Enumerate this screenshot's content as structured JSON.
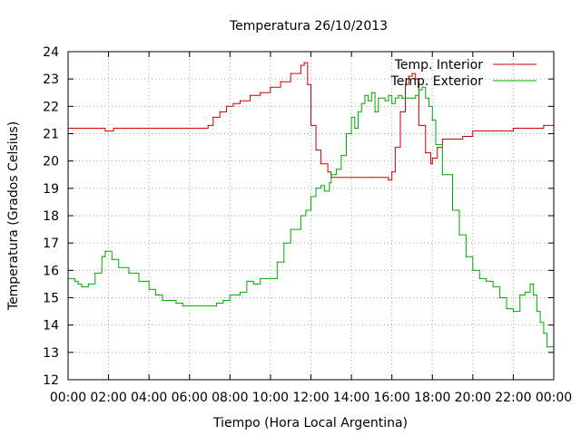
{
  "chart_data": {
    "type": "line",
    "title": "Temperatura 26/10/2013",
    "xlabel": "Tiempo (Hora Local Argentina)",
    "ylabel": "Temperatura (Grados Celsius)",
    "xlim": [
      "00:00",
      "24:00"
    ],
    "ylim": [
      12,
      24
    ],
    "x_ticks": [
      "00:00",
      "02:00",
      "04:00",
      "06:00",
      "08:00",
      "10:00",
      "12:00",
      "14:00",
      "16:00",
      "18:00",
      "20:00",
      "22:00",
      "00:00"
    ],
    "y_ticks": [
      "12",
      "13",
      "14",
      "15",
      "16",
      "17",
      "18",
      "19",
      "20",
      "21",
      "22",
      "23",
      "24"
    ],
    "grid": true,
    "legend_position": "top-right",
    "series": [
      {
        "name": "Temp. Interior",
        "color": "#cc0000",
        "x": [
          "00:00",
          "01:45",
          "01:50",
          "02:10",
          "02:15",
          "06:40",
          "06:55",
          "07:10",
          "07:30",
          "07:50",
          "08:10",
          "08:30",
          "09:00",
          "09:30",
          "10:00",
          "10:30",
          "11:00",
          "11:30",
          "11:40",
          "11:50",
          "12:00",
          "12:15",
          "12:30",
          "12:50",
          "13:00",
          "14:00",
          "15:00",
          "15:40",
          "15:50",
          "16:00",
          "16:10",
          "16:25",
          "16:40",
          "16:50",
          "17:00",
          "17:10",
          "17:20",
          "17:40",
          "17:55",
          "18:00",
          "18:15",
          "18:30",
          "19:00",
          "19:30",
          "20:00",
          "20:30",
          "21:00",
          "22:00",
          "23:00",
          "23:30",
          "24:00"
        ],
        "values": [
          21.2,
          21.2,
          21.1,
          21.1,
          21.2,
          21.2,
          21.3,
          21.6,
          21.8,
          22.0,
          22.1,
          22.2,
          22.4,
          22.5,
          22.7,
          22.9,
          23.2,
          23.5,
          23.6,
          22.8,
          21.3,
          20.4,
          19.9,
          19.6,
          19.4,
          19.4,
          19.4,
          19.4,
          19.3,
          19.6,
          20.5,
          21.8,
          22.8,
          23.1,
          23.2,
          23.0,
          21.3,
          20.3,
          19.9,
          20.1,
          20.5,
          20.8,
          20.8,
          20.9,
          21.1,
          21.1,
          21.1,
          21.2,
          21.2,
          21.3,
          21.3
        ]
      },
      {
        "name": "Temp. Exterior",
        "color": "#00aa00",
        "x": [
          "00:00",
          "00:20",
          "00:30",
          "00:40",
          "01:00",
          "01:20",
          "01:40",
          "01:50",
          "02:10",
          "02:30",
          "03:00",
          "03:30",
          "04:00",
          "04:20",
          "04:40",
          "05:20",
          "05:40",
          "06:00",
          "07:00",
          "07:20",
          "07:40",
          "08:00",
          "08:30",
          "08:50",
          "09:10",
          "09:30",
          "10:00",
          "10:20",
          "10:40",
          "11:00",
          "11:30",
          "11:45",
          "12:00",
          "12:15",
          "12:30",
          "12:40",
          "12:55",
          "13:00",
          "13:15",
          "13:30",
          "13:45",
          "14:00",
          "14:10",
          "14:20",
          "14:30",
          "14:40",
          "14:50",
          "15:00",
          "15:10",
          "15:20",
          "15:40",
          "15:50",
          "16:00",
          "16:10",
          "16:20",
          "16:30",
          "16:50",
          "17:00",
          "17:10",
          "17:20",
          "17:30",
          "17:40",
          "17:50",
          "18:00",
          "18:10",
          "18:30",
          "19:00",
          "19:20",
          "19:40",
          "20:00",
          "20:20",
          "20:40",
          "21:00",
          "21:20",
          "21:40",
          "22:00",
          "22:20",
          "22:35",
          "22:50",
          "23:00",
          "23:10",
          "23:20",
          "23:30",
          "23:40",
          "23:50",
          "24:00"
        ],
        "values": [
          15.7,
          15.6,
          15.5,
          15.4,
          15.5,
          15.9,
          16.5,
          16.7,
          16.4,
          16.1,
          15.9,
          15.6,
          15.3,
          15.1,
          14.9,
          14.8,
          14.7,
          14.7,
          14.7,
          14.8,
          14.9,
          15.1,
          15.2,
          15.6,
          15.5,
          15.7,
          15.7,
          16.3,
          17.0,
          17.5,
          18.0,
          18.2,
          18.7,
          19.0,
          19.1,
          18.9,
          19.2,
          19.5,
          19.7,
          20.2,
          21.0,
          21.6,
          21.2,
          21.8,
          22.1,
          22.4,
          22.2,
          22.5,
          21.8,
          22.3,
          22.2,
          22.4,
          22.1,
          22.3,
          22.4,
          22.3,
          22.3,
          22.3,
          22.4,
          22.6,
          22.7,
          22.3,
          22.0,
          21.5,
          20.6,
          19.5,
          18.2,
          17.3,
          16.5,
          16.0,
          15.7,
          15.6,
          15.4,
          15.0,
          14.6,
          14.5,
          15.1,
          15.2,
          15.5,
          15.1,
          14.5,
          14.1,
          13.7,
          13.2,
          13.2,
          12.7
        ]
      }
    ]
  }
}
